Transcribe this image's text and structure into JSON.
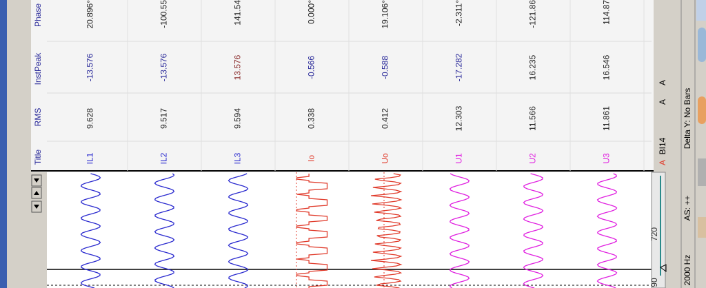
{
  "header_labels": [
    "Title",
    "RMS",
    "InstPeak",
    "Phase"
  ],
  "channels": [
    {
      "title": "IL1",
      "rms": "9.628",
      "inst_peak": "-13.576",
      "phase": "20.896°",
      "color": "#2a2acf"
    },
    {
      "title": "IL2",
      "rms": "9.517",
      "inst_peak": "-13.576",
      "phase": "-100.55",
      "color": "#2a2acf"
    },
    {
      "title": "IL3",
      "rms": "9.594",
      "inst_peak": "13.576",
      "phase": "141.54",
      "color": "#2a2acf"
    },
    {
      "title": "Io",
      "rms": "0.338",
      "inst_peak": "-0.566",
      "phase": "0.000°",
      "color": "#e03a2a"
    },
    {
      "title": "Uo",
      "rms": "0.412",
      "inst_peak": "-0.588",
      "phase": "19.106°",
      "color": "#e03a2a"
    },
    {
      "title": "U1",
      "rms": "12.303",
      "inst_peak": "-17.282",
      "phase": "-2.311°",
      "color": "#e020e0"
    },
    {
      "title": "U2",
      "rms": "11.566",
      "inst_peak": "16.235",
      "phase": "-121.86",
      "color": "#e020e0"
    },
    {
      "title": "U3",
      "rms": "11.861",
      "inst_peak": "16.546",
      "phase": "114.87",
      "color": "#e020e0"
    }
  ],
  "side_labels": {
    "unit_1": "A",
    "unit_2": "A",
    "binary_unit": "A",
    "binary": "BI14"
  },
  "scale": {
    "upper": "720",
    "lower": "90"
  },
  "status": {
    "delta_y": "Delta Y: No Bars",
    "as": "AS: ++",
    "freq": "2000 Hz"
  }
}
